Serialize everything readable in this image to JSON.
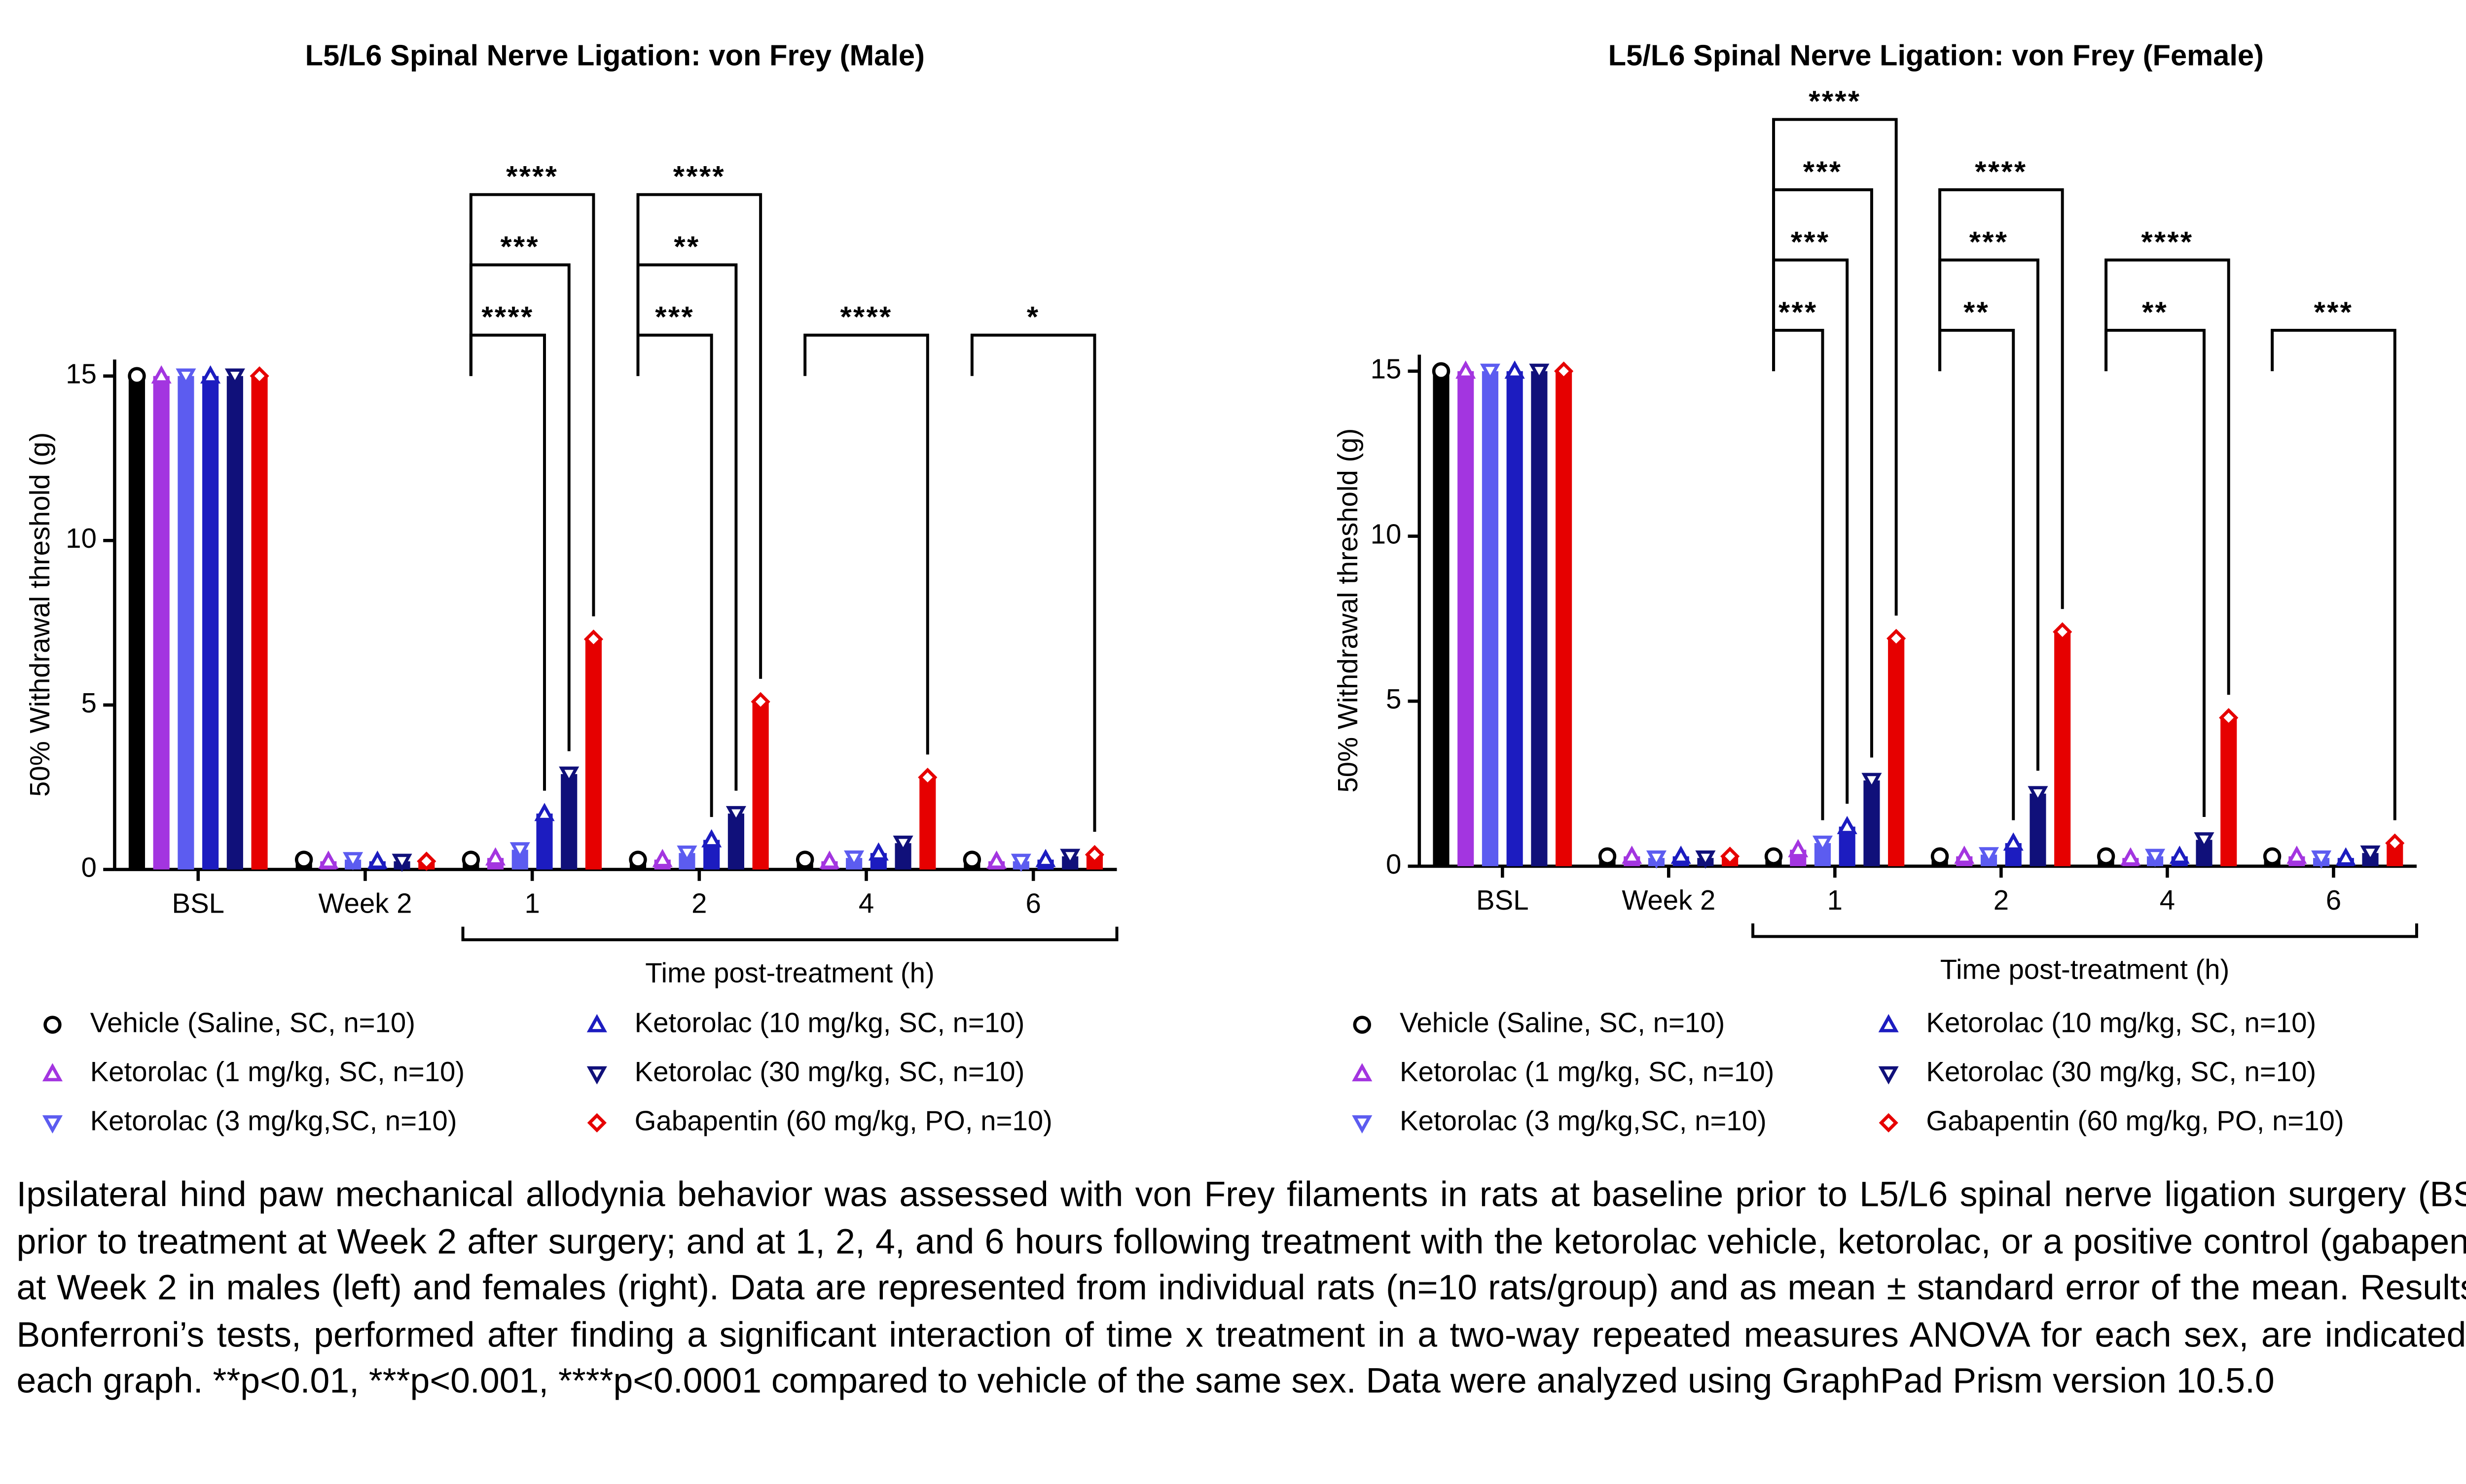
{
  "chart_data": [
    {
      "type": "bar",
      "title": "L5/L6 Spinal Nerve Ligation: von Frey (Male)",
      "y_label": "50% Withdrawal threshold (g)",
      "x_label": "Time post-treatment (h)",
      "categories": [
        "BSL",
        "Week 2",
        "1",
        "2",
        "4",
        "6"
      ],
      "series": [
        {
          "name": "Vehicle (Saline, SC, n=10)",
          "color": "#000000",
          "marker": "circle",
          "values": [
            15,
            0.3,
            0.3,
            0.3,
            0.3,
            0.3
          ]
        },
        {
          "name": "Ketorolac (1 mg/kg, SC, n=10)",
          "color": "#a335e0",
          "marker": "triangle-up",
          "values": [
            15,
            0.25,
            0.35,
            0.3,
            0.25,
            0.25
          ]
        },
        {
          "name": "Ketorolac (3 mg/kg,SC, n=10)",
          "color": "#5c5cf0",
          "marker": "triangle-down",
          "values": [
            15,
            0.3,
            0.6,
            0.5,
            0.35,
            0.25
          ]
        },
        {
          "name": "Ketorolac (10 mg/kg, SC, n=10)",
          "color": "#1c1cc0",
          "marker": "triangle-up",
          "values": [
            15,
            0.25,
            1.7,
            0.9,
            0.5,
            0.3
          ]
        },
        {
          "name": "Ketorolac (30 mg/kg, SC, n=10)",
          "color": "#10107a",
          "marker": "triangle-down",
          "values": [
            15,
            0.25,
            2.9,
            1.7,
            0.8,
            0.4
          ]
        },
        {
          "name": "Gabapentin (60 mg/kg, PO, n=10)",
          "color": "#e60000",
          "marker": "diamond",
          "values": [
            15,
            0.25,
            7.0,
            5.1,
            2.8,
            0.45
          ]
        }
      ],
      "ylim": [
        0,
        15.5
      ],
      "yticks": [
        0,
        5,
        10,
        15
      ],
      "annotations": [
        {
          "category": "1",
          "series": "Ketorolac (10 mg/kg, SC, n=10)",
          "label": "****"
        },
        {
          "category": "1",
          "series": "Ketorolac (30 mg/kg, SC, n=10)",
          "label": "***"
        },
        {
          "category": "1",
          "series": "Gabapentin (60 mg/kg, PO, n=10)",
          "label": "****"
        },
        {
          "category": "2",
          "series": "Ketorolac (10 mg/kg, SC, n=10)",
          "label": "***"
        },
        {
          "category": "2",
          "series": "Ketorolac (30 mg/kg, SC, n=10)",
          "label": "**"
        },
        {
          "category": "2",
          "series": "Gabapentin (60 mg/kg, PO, n=10)",
          "label": "****"
        },
        {
          "category": "4",
          "series": "Gabapentin (60 mg/kg, PO, n=10)",
          "label": "****"
        },
        {
          "category": "6",
          "series": "Gabapentin (60 mg/kg, PO, n=10)",
          "label": "*"
        }
      ]
    },
    {
      "type": "bar",
      "title": "L5/L6 Spinal Nerve Ligation: von Frey (Female)",
      "y_label": "50% Withdrawal threshold (g)",
      "x_label": "Time post-treatment (h)",
      "categories": [
        "BSL",
        "Week 2",
        "1",
        "2",
        "4",
        "6"
      ],
      "series": [
        {
          "name": "Vehicle (Saline, SC, n=10)",
          "color": "#000000",
          "marker": "circle",
          "values": [
            15,
            0.3,
            0.3,
            0.3,
            0.3,
            0.3
          ]
        },
        {
          "name": "Ketorolac (1 mg/kg, SC, n=10)",
          "color": "#a335e0",
          "marker": "triangle-up",
          "values": [
            15,
            0.3,
            0.5,
            0.3,
            0.25,
            0.3
          ]
        },
        {
          "name": "Ketorolac (3 mg/kg,SC, n=10)",
          "color": "#5c5cf0",
          "marker": "triangle-down",
          "values": [
            15,
            0.25,
            0.7,
            0.35,
            0.3,
            0.25
          ]
        },
        {
          "name": "Ketorolac (10 mg/kg, SC, n=10)",
          "color": "#1c1cc0",
          "marker": "triangle-up",
          "values": [
            15,
            0.3,
            1.2,
            0.7,
            0.3,
            0.25
          ]
        },
        {
          "name": "Ketorolac (30 mg/kg, SC, n=10)",
          "color": "#10107a",
          "marker": "triangle-down",
          "values": [
            15,
            0.25,
            2.6,
            2.2,
            0.8,
            0.4
          ]
        },
        {
          "name": "Gabapentin (60 mg/kg, PO, n=10)",
          "color": "#e60000",
          "marker": "diamond",
          "values": [
            15,
            0.3,
            6.9,
            7.1,
            4.5,
            0.7
          ]
        }
      ],
      "ylim": [
        0,
        15.5
      ],
      "yticks": [
        0,
        5,
        10,
        15
      ],
      "annotations": [
        {
          "category": "1",
          "series": "Ketorolac (3 mg/kg,SC, n=10)",
          "label": "***"
        },
        {
          "category": "1",
          "series": "Ketorolac (10 mg/kg, SC, n=10)",
          "label": "***"
        },
        {
          "category": "1",
          "series": "Ketorolac (30 mg/kg, SC, n=10)",
          "label": "***"
        },
        {
          "category": "1",
          "series": "Gabapentin (60 mg/kg, PO, n=10)",
          "label": "****"
        },
        {
          "category": "2",
          "series": "Ketorolac (10 mg/kg, SC, n=10)",
          "label": "**"
        },
        {
          "category": "2",
          "series": "Ketorolac (30 mg/kg, SC, n=10)",
          "label": "***"
        },
        {
          "category": "2",
          "series": "Gabapentin (60 mg/kg, PO, n=10)",
          "label": "****"
        },
        {
          "category": "4",
          "series": "Ketorolac (30 mg/kg, SC, n=10)",
          "label": "**"
        },
        {
          "category": "4",
          "series": "Gabapentin (60 mg/kg, PO, n=10)",
          "label": "****"
        },
        {
          "category": "6",
          "series": "Gabapentin (60 mg/kg, PO, n=10)",
          "label": "***"
        }
      ]
    }
  ],
  "caption": "Ipsilateral hind paw mechanical allodynia behavior was assessed with von Frey filaments in rats at baseline prior to L5/L6 spinal nerve ligation surgery (BSL); prior to treatment at Week 2 after surgery; and at 1, 2, 4, and 6 hours following treatment with the ketorolac vehicle, ketorolac, or a positive control (gabapentin) at Week 2 in males (left) and females (right). Data are represented from individual rats (n=10 rats/group) and as mean ± standard error of the mean. Results of Bonferroni’s tests, performed after finding a significant interaction of time x treatment in a two-way repeated measures ANOVA for each sex, are indicated on each graph. **p<0.01, ***p<0.001, ****p<0.0001 compared to vehicle of the same sex. Data were analyzed using GraphPad Prism version 10.5.0"
}
